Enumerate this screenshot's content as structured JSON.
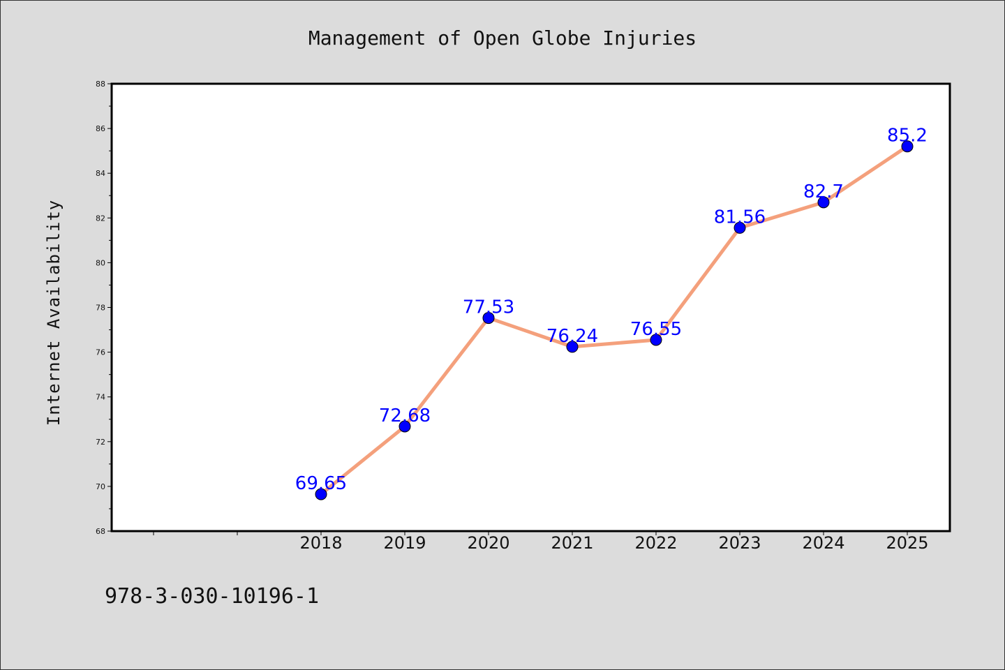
{
  "chart_data": {
    "type": "line",
    "title": "Management of Open Globe Injuries",
    "xlabel": "",
    "ylabel": "Internet Availability",
    "categories": [
      "2018",
      "2019",
      "2020",
      "2021",
      "2022",
      "2023",
      "2024",
      "2025"
    ],
    "series": [
      {
        "values": [
          69.65,
          72.68,
          77.53,
          76.24,
          76.55,
          81.56,
          82.7,
          85.2
        ],
        "labels": [
          "69.65",
          "72.68",
          "77.53",
          "76.24",
          "76.55",
          "81.56",
          "82.7",
          "85.2"
        ],
        "line_color": "#f4a07c",
        "marker_color": "#0000ff"
      }
    ],
    "ylim": [
      68,
      88
    ],
    "yticks": [
      "68",
      "70",
      "72",
      "74",
      "76",
      "78",
      "80",
      "82",
      "84",
      "86",
      "88"
    ],
    "grid": false,
    "legend": "none"
  },
  "footer": {
    "text": "978-3-030-10196-1"
  },
  "colors": {
    "background": "#dcdcdc",
    "plot_background": "#ffffff",
    "label_color": "#0000ff"
  }
}
